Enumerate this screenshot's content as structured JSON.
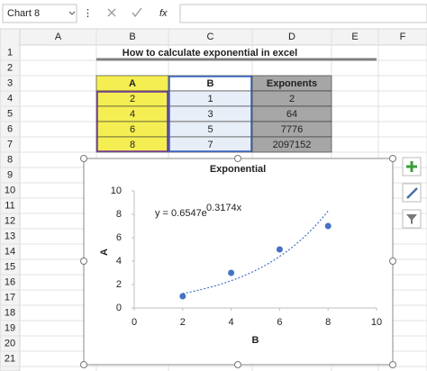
{
  "formula_bar": {
    "name_box": "Chart 8",
    "function_label": "fx"
  },
  "sheet": {
    "columns": [
      "A",
      "B",
      "C",
      "D",
      "E",
      "F"
    ],
    "rows": [
      1,
      2,
      3,
      4,
      5,
      6,
      7,
      8,
      9,
      10,
      11,
      12,
      13,
      14,
      15,
      16,
      17,
      18,
      19,
      20,
      21
    ]
  },
  "heading": "How to calculate exponential in excel",
  "table": {
    "header": [
      "A",
      "B",
      "Exponents"
    ],
    "rows": [
      [
        2,
        1,
        2
      ],
      [
        4,
        3,
        64
      ],
      [
        6,
        5,
        7776
      ],
      [
        8,
        7,
        2097152
      ]
    ]
  },
  "chart_data": {
    "type": "scatter",
    "title": "Exponential",
    "x_label": "B",
    "y_label": "A",
    "x": [
      2,
      4,
      6,
      8
    ],
    "values": [
      1,
      3,
      5,
      7
    ],
    "color": "#4472c4",
    "xlim": [
      0,
      10
    ],
    "xticks": [
      0,
      2,
      4,
      6,
      8,
      10
    ],
    "ylim": [
      0,
      10
    ],
    "yticks": [
      0,
      2,
      4,
      6,
      8,
      10
    ],
    "trendline": {
      "label": "y = 0.6547e",
      "exponent_label": "0.3174x",
      "a": 0.6547,
      "b": 0.3174
    }
  }
}
